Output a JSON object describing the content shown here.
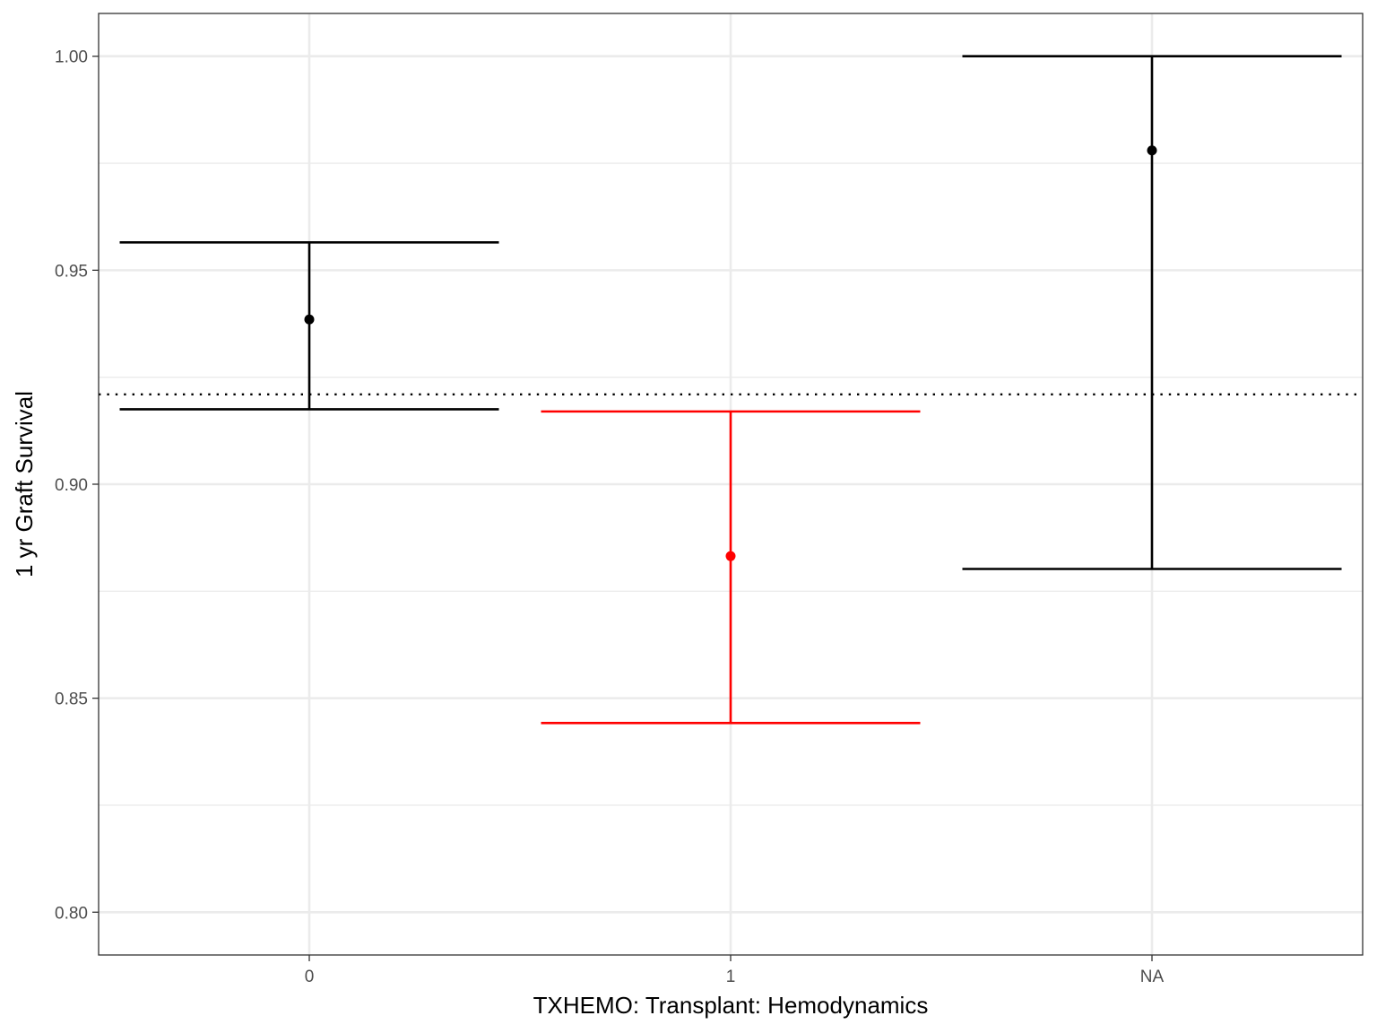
{
  "chart_data": {
    "type": "errorbar",
    "title": "",
    "xlabel": "TXHEMO: Transplant: Hemodynamics",
    "ylabel": "1 yr Graft Survival",
    "categories": [
      "0",
      "1",
      "NA"
    ],
    "points": [
      {
        "category": "0",
        "estimate": 0.9385,
        "lower": 0.9175,
        "upper": 0.9565,
        "color": "#000000"
      },
      {
        "category": "1",
        "estimate": 0.8832,
        "lower": 0.8442,
        "upper": 0.917,
        "color": "#ff0000"
      },
      {
        "category": "NA",
        "estimate": 0.978,
        "lower": 0.8802,
        "upper": 1.0,
        "color": "#000000"
      }
    ],
    "reference_line": {
      "value": 0.921,
      "style": "dotted",
      "color": "#000000"
    },
    "ylim": [
      0.79,
      1.01
    ],
    "y_ticks": [
      0.8,
      0.85,
      0.9,
      0.95,
      1.0
    ],
    "y_tick_labels": [
      "0.80",
      "0.85",
      "0.90",
      "0.95",
      "1.00"
    ],
    "y_minor_ticks": [
      0.825,
      0.875,
      0.925,
      0.975
    ],
    "grid": true,
    "legend": "none"
  }
}
